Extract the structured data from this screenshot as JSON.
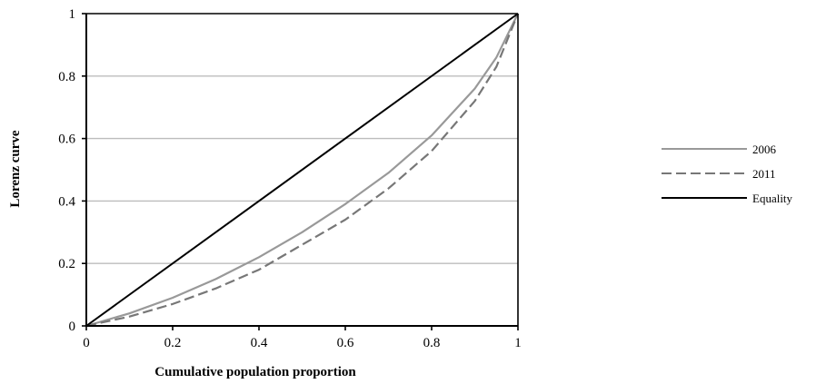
{
  "chart_data": {
    "type": "line",
    "title": "",
    "xlabel": "Cumulative population proportion",
    "ylabel": "Lorenz curve",
    "xlim": [
      0,
      1
    ],
    "ylim": [
      0,
      1
    ],
    "x_ticks": [
      0,
      0.2,
      0.4,
      0.6,
      0.8,
      1
    ],
    "x_tick_labels": [
      "0",
      "0.2",
      "0.4",
      "0.6",
      "0.8",
      "1"
    ],
    "y_ticks": [
      0,
      0.2,
      0.4,
      0.6,
      0.8,
      1
    ],
    "y_tick_labels": [
      "0",
      "0.2",
      "0.4",
      "0.6",
      "0.8",
      "1"
    ],
    "grid": "horizontal",
    "legend_position": "right",
    "series": [
      {
        "name": "2006",
        "key": "s2006",
        "color": "#999999",
        "dash": "solid",
        "x": [
          0,
          0.1,
          0.2,
          0.3,
          0.4,
          0.5,
          0.6,
          0.7,
          0.8,
          0.9,
          0.95,
          1
        ],
        "y": [
          0,
          0.04,
          0.09,
          0.15,
          0.22,
          0.3,
          0.39,
          0.49,
          0.61,
          0.76,
          0.86,
          1
        ]
      },
      {
        "name": "2011",
        "key": "s2011",
        "color": "#777777",
        "dash": "dashed",
        "x": [
          0,
          0.1,
          0.2,
          0.3,
          0.4,
          0.5,
          0.6,
          0.7,
          0.8,
          0.9,
          0.95,
          1
        ],
        "y": [
          0,
          0.03,
          0.07,
          0.12,
          0.18,
          0.26,
          0.34,
          0.44,
          0.56,
          0.72,
          0.83,
          1
        ]
      },
      {
        "name": "Equality",
        "key": "equality",
        "color": "#000000",
        "dash": "solid",
        "x": [
          0,
          1
        ],
        "y": [
          0,
          1
        ]
      }
    ]
  }
}
